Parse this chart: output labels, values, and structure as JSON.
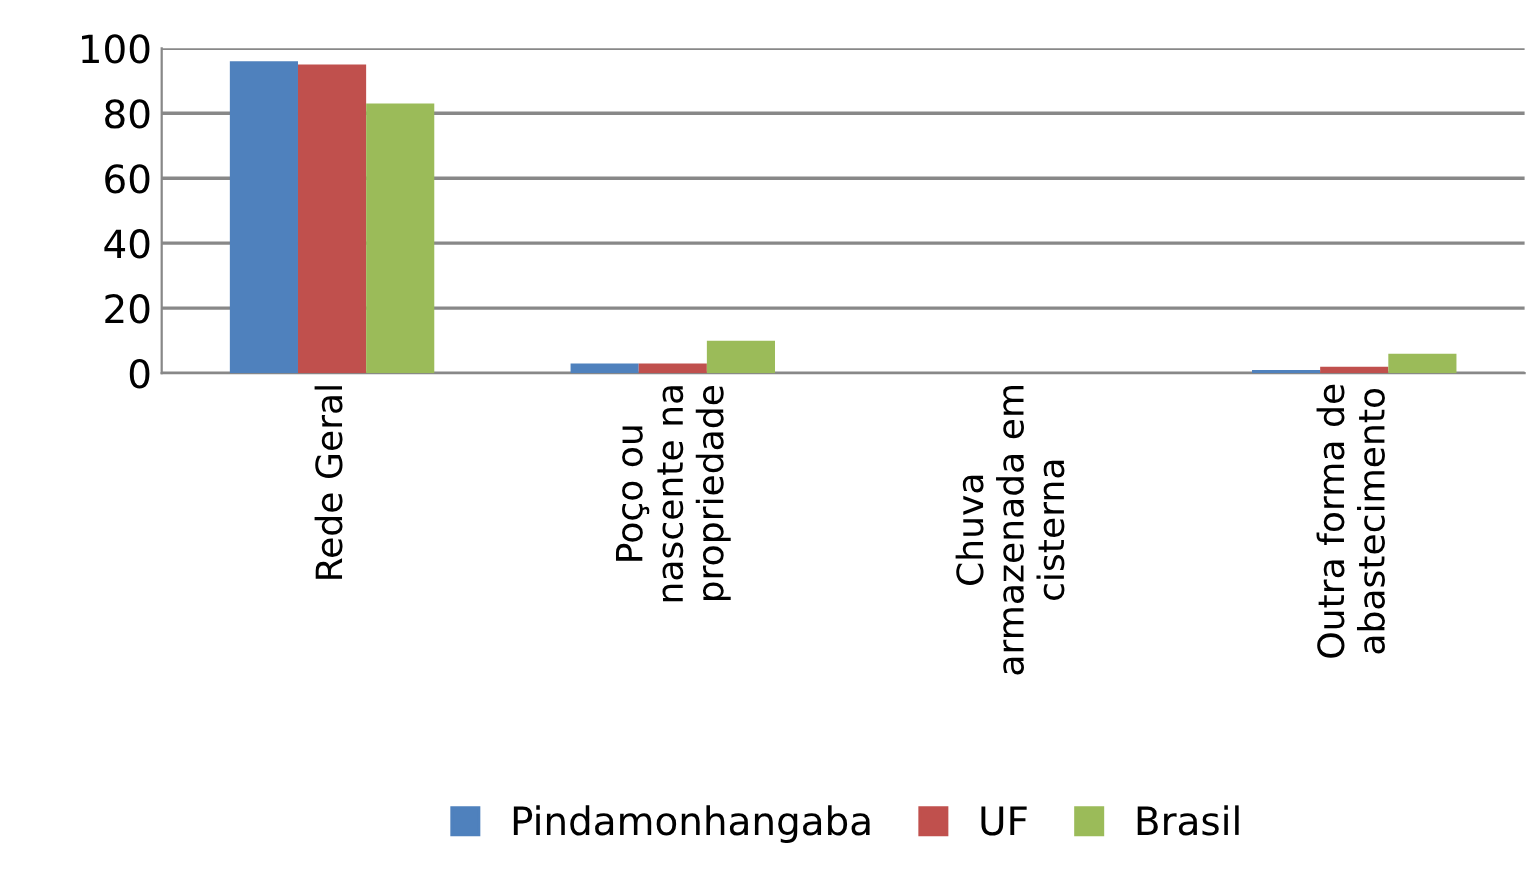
{
  "chart_data": {
    "type": "bar",
    "categories": [
      "Rede Geral",
      "Poço ou nascente na propriedade",
      "Chuva armazenada em cisterna",
      "Outra forma de abastecimento"
    ],
    "series": [
      {
        "name": "Pindamonhangaba",
        "color": "#4f81bd",
        "values": [
          96,
          3,
          null,
          1
        ]
      },
      {
        "name": "UF",
        "color": "#c0504d",
        "values": [
          95,
          3,
          null,
          2
        ]
      },
      {
        "name": "Brasil",
        "color": "#9bbb59",
        "values": [
          83,
          10,
          null,
          6
        ]
      }
    ],
    "ylim": [
      0,
      100
    ],
    "yticks": [
      0,
      20,
      40,
      60,
      80,
      100
    ],
    "grid": "y",
    "legend": "bottom"
  }
}
